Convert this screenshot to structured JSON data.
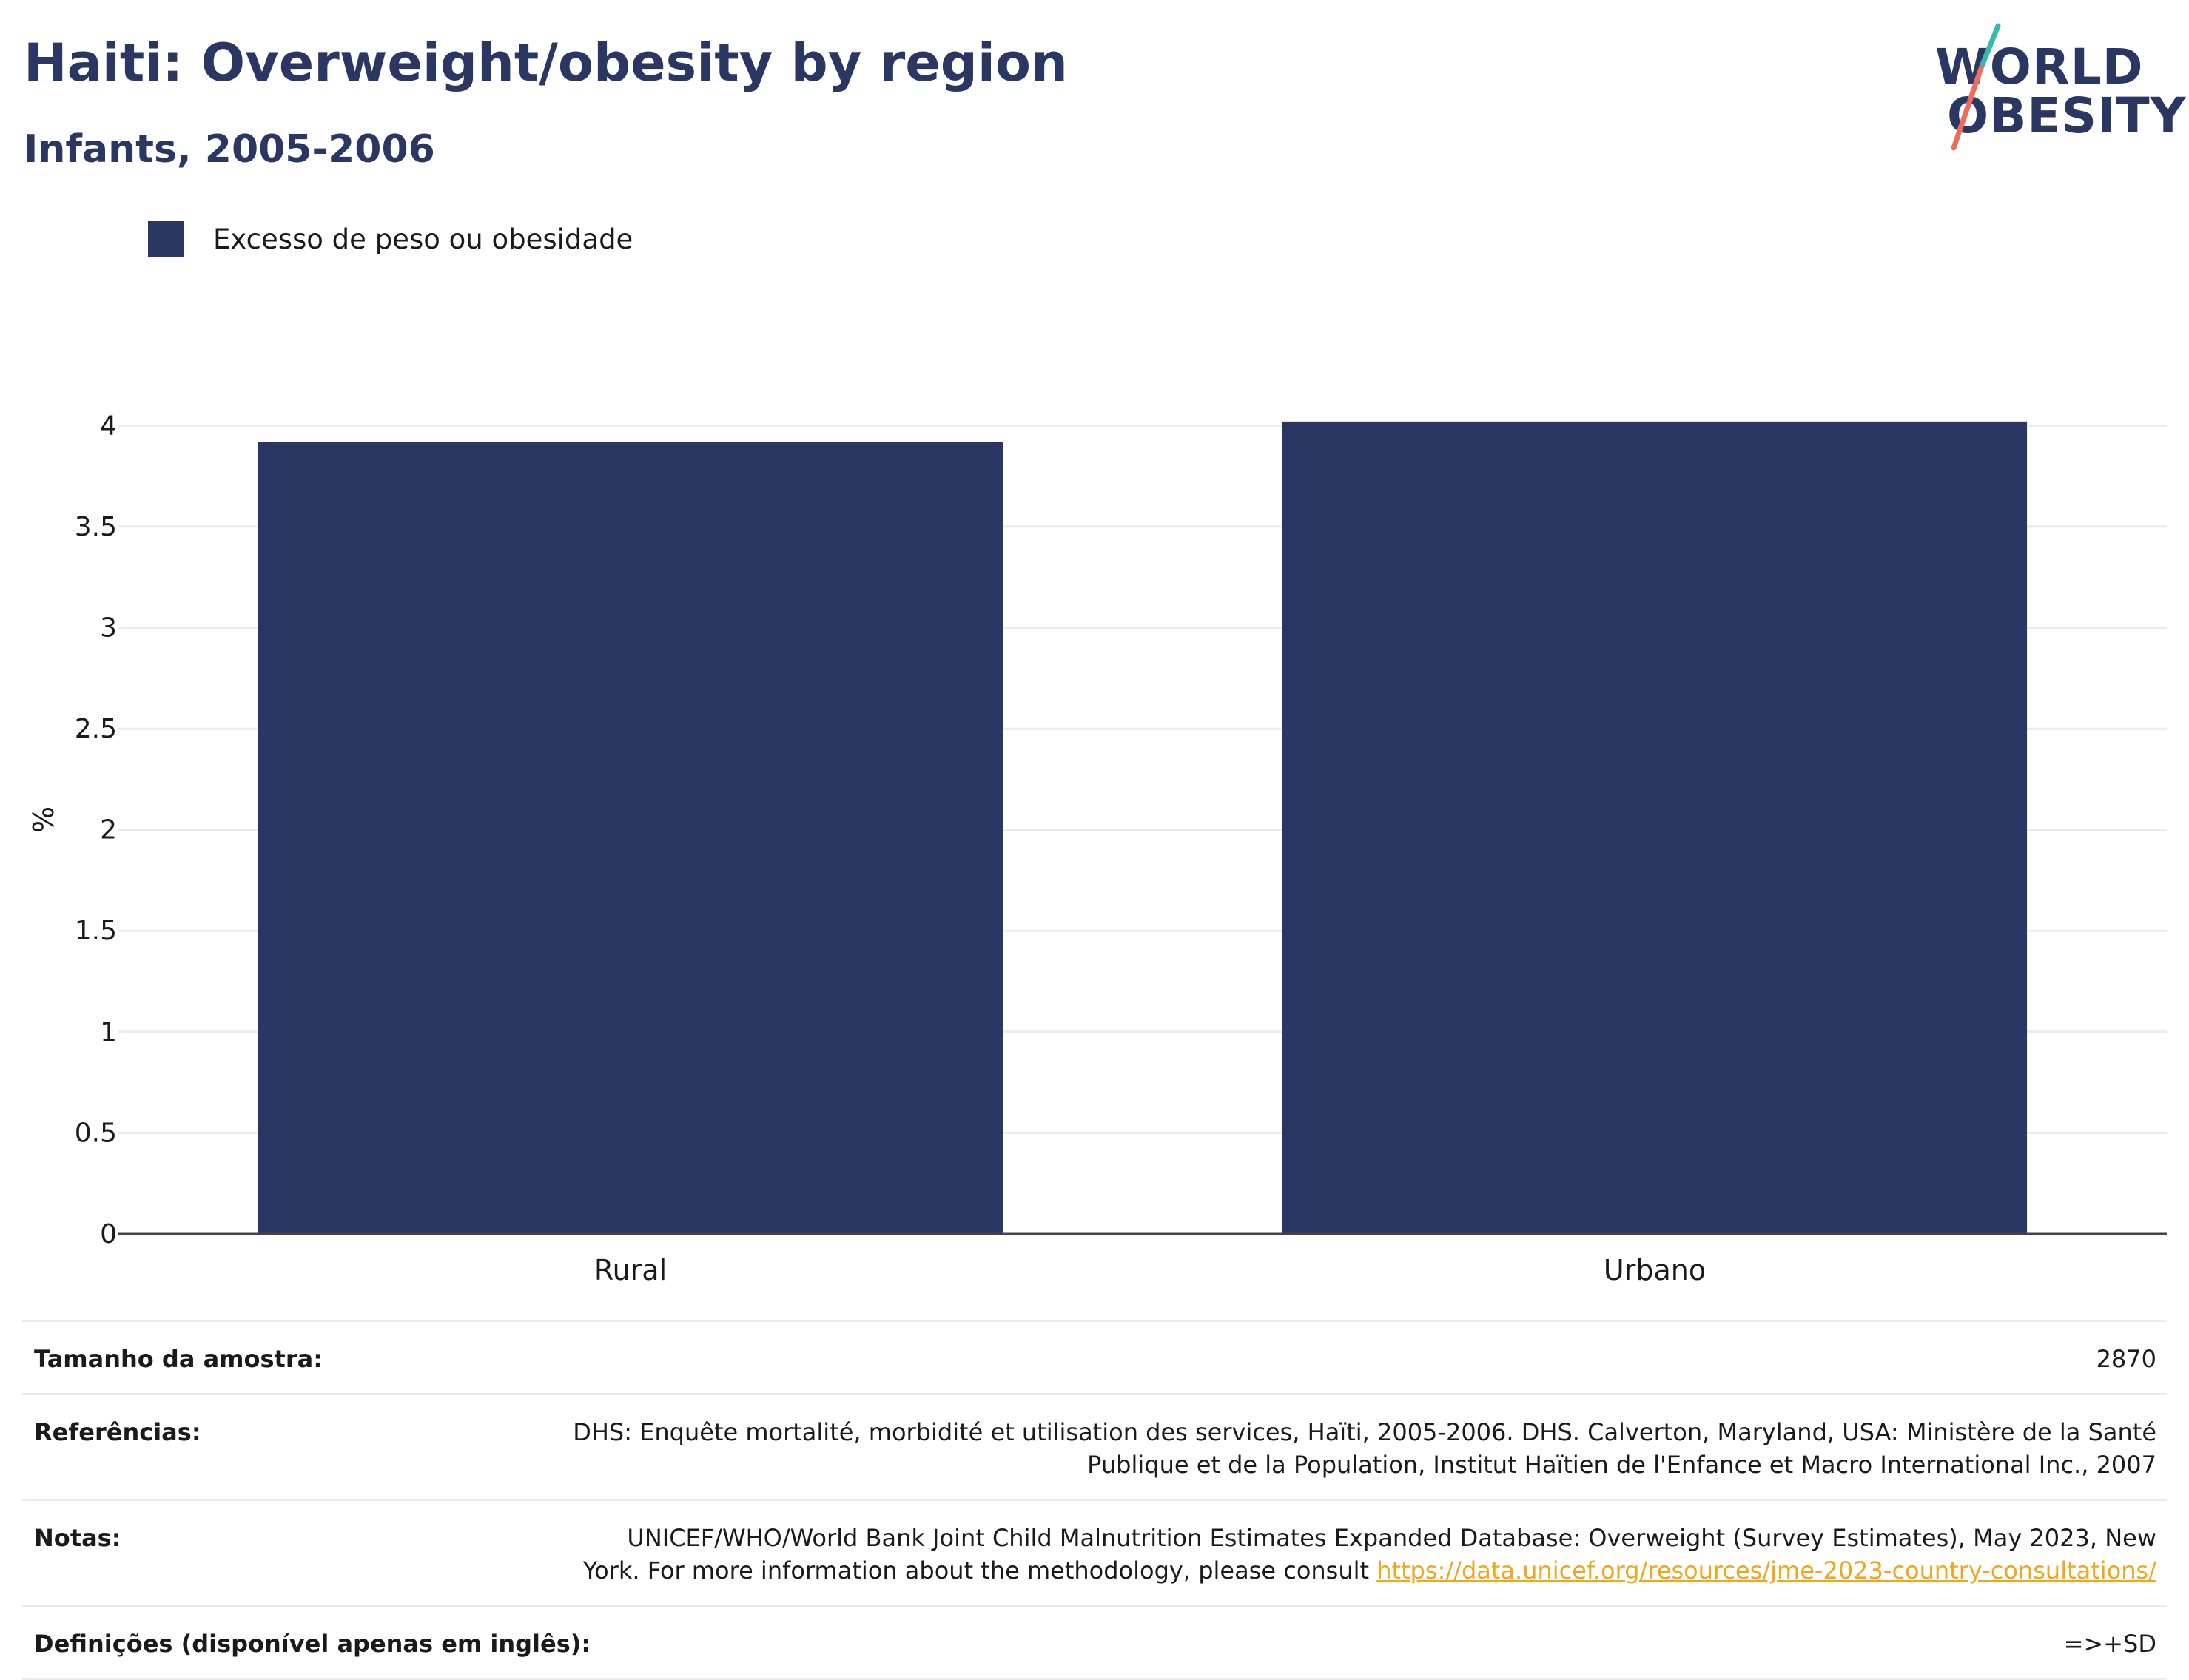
{
  "header": {
    "title": "Haiti: Overweight/obesity by region",
    "subtitle": "Infants, 2005-2006"
  },
  "logo": {
    "line1": "WORLD",
    "line2": "OBESITY",
    "colors": {
      "text": "#2b3763",
      "slash_top": "#35b8b0",
      "slash_bottom": "#ef6b5b"
    }
  },
  "legend": {
    "label": "Excesso de peso ou obesidade",
    "color": "#2b3763"
  },
  "chart_data": {
    "type": "bar",
    "categories": [
      "Rural",
      "Urbano"
    ],
    "series": [
      {
        "name": "Excesso de peso ou obesidade",
        "values": [
          3.92,
          4.02
        ],
        "color": "#2b3763"
      }
    ],
    "title": "Haiti: Overweight/obesity by region",
    "subtitle": "Infants, 2005-2006",
    "xlabel": "",
    "ylabel": "%",
    "ylim": [
      0,
      4.1
    ],
    "yticks": [
      "0",
      "0.5",
      "1",
      "1.5",
      "2",
      "2.5",
      "3",
      "3.5",
      "4"
    ],
    "grid": true,
    "legend_position": "top-left"
  },
  "info": {
    "sample_size_label": "Tamanho da amostra:",
    "sample_size_value": "2870",
    "references_label": "Referências:",
    "references_value": "DHS: Enquête mortalité, morbidité et utilisation des services, Haïti, 2005-2006. DHS. Calverton, Maryland, USA: Ministère de la Santé Publique et de la Population, Institut Haïtien de l'Enfance et Macro International Inc., 2007",
    "notes_label": "Notas:",
    "notes_text": "UNICEF/WHO/World Bank Joint Child Malnutrition Estimates Expanded Database: Overweight (Survey Estimates), May 2023, New York. For more information about the methodology, please consult ",
    "notes_link": "https://data.unicef.org/resources/jme-2023-country-consultations/",
    "definitions_label": "Definições (disponível apenas em inglês):",
    "definitions_value": "=>+SD"
  }
}
